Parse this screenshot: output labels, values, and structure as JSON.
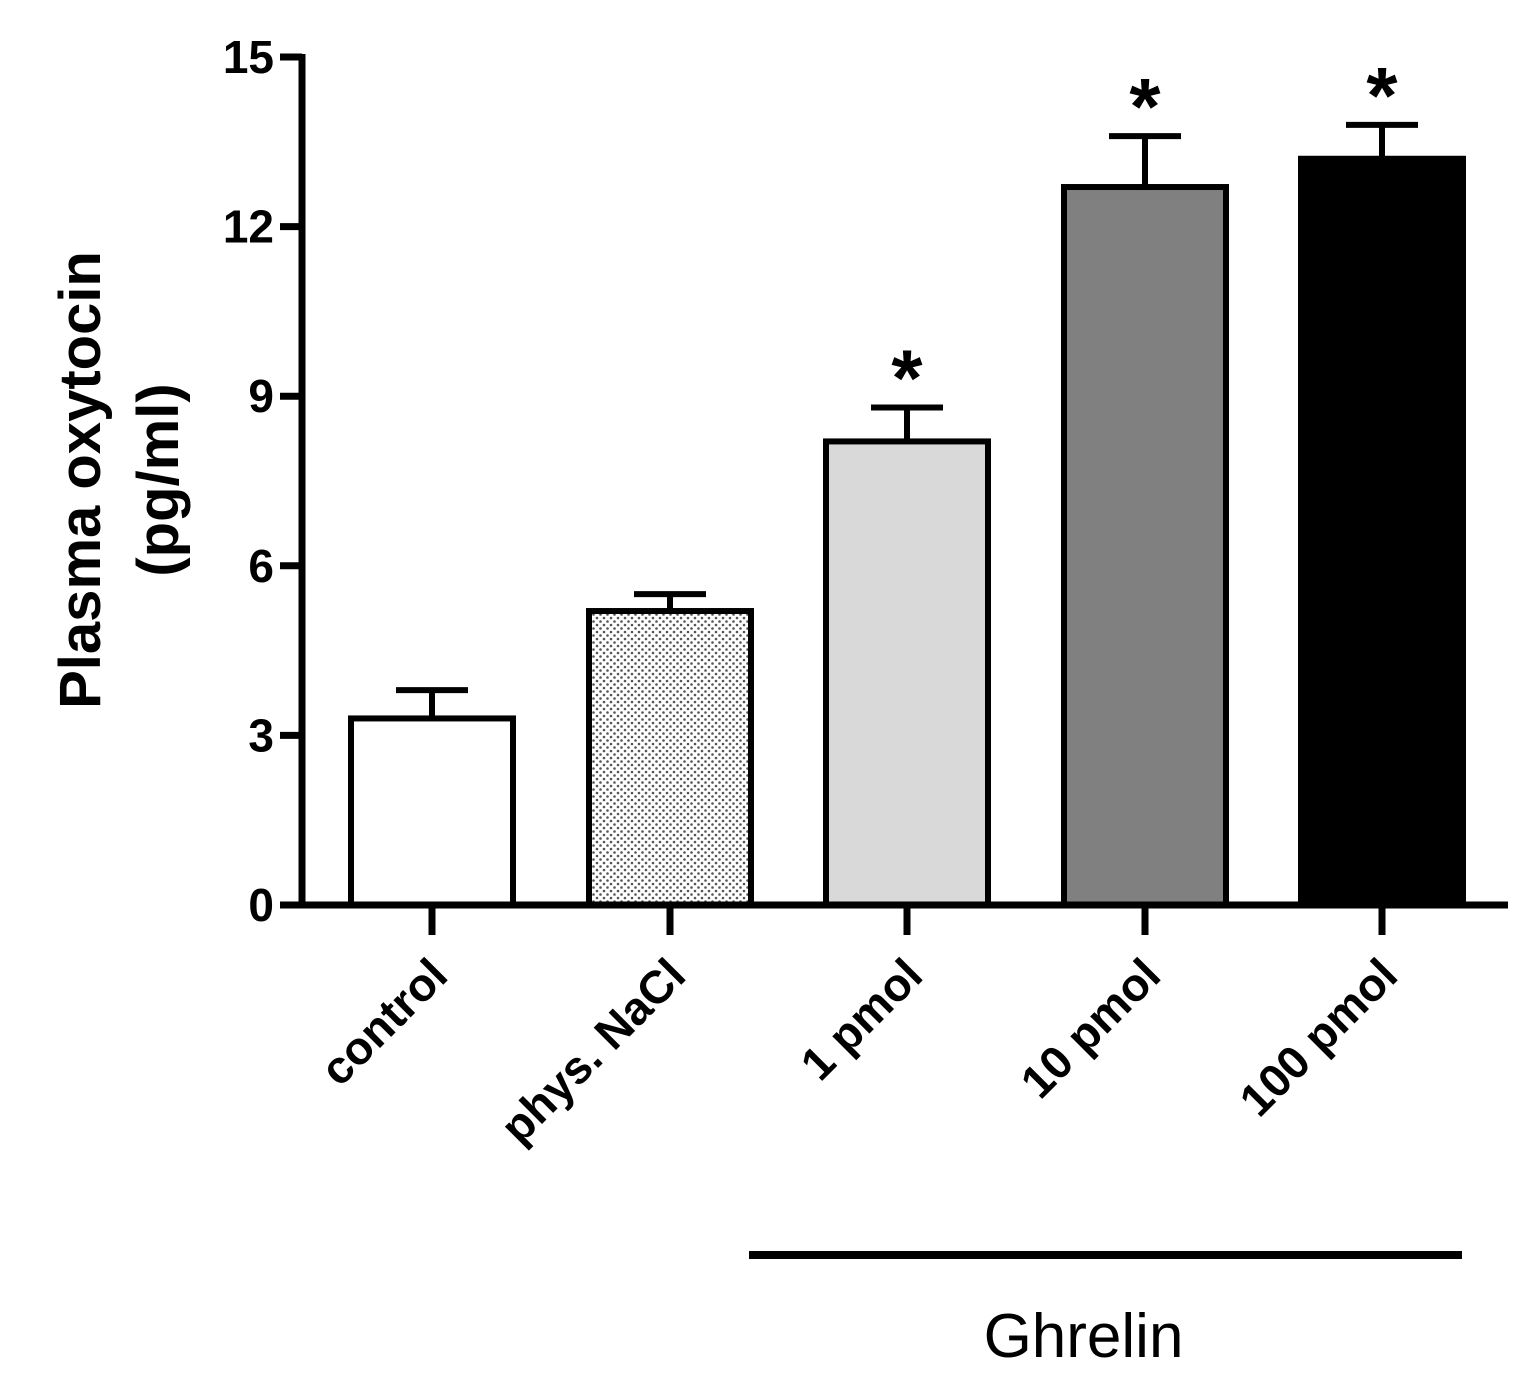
{
  "chart_data": {
    "type": "bar",
    "title": "",
    "ylabel": "Plasma oxytocin",
    "ylabel_unit": "(pg/ml)",
    "xlabel": "",
    "ylim": [
      0,
      15
    ],
    "yticks": [
      0,
      3,
      6,
      9,
      12,
      15
    ],
    "ytick_labels": [
      "0",
      "3",
      "6",
      "9",
      "12",
      "15"
    ],
    "grid": false,
    "categories": [
      "control",
      "phys. NaCl",
      "1 pmol",
      "10 pmol",
      "100 pmol"
    ],
    "values": [
      3.3,
      5.2,
      8.2,
      12.7,
      13.2
    ],
    "errors": [
      0.5,
      0.3,
      0.6,
      0.9,
      0.6
    ],
    "significance": [
      "",
      "",
      "*",
      "*",
      "*"
    ],
    "fills": [
      "#ffffff",
      "dotted",
      "#d9d9d9",
      "#808080",
      "#000000"
    ],
    "group_bracket": {
      "label": "Ghrelin",
      "from_category": 2,
      "to_category": 4
    }
  }
}
